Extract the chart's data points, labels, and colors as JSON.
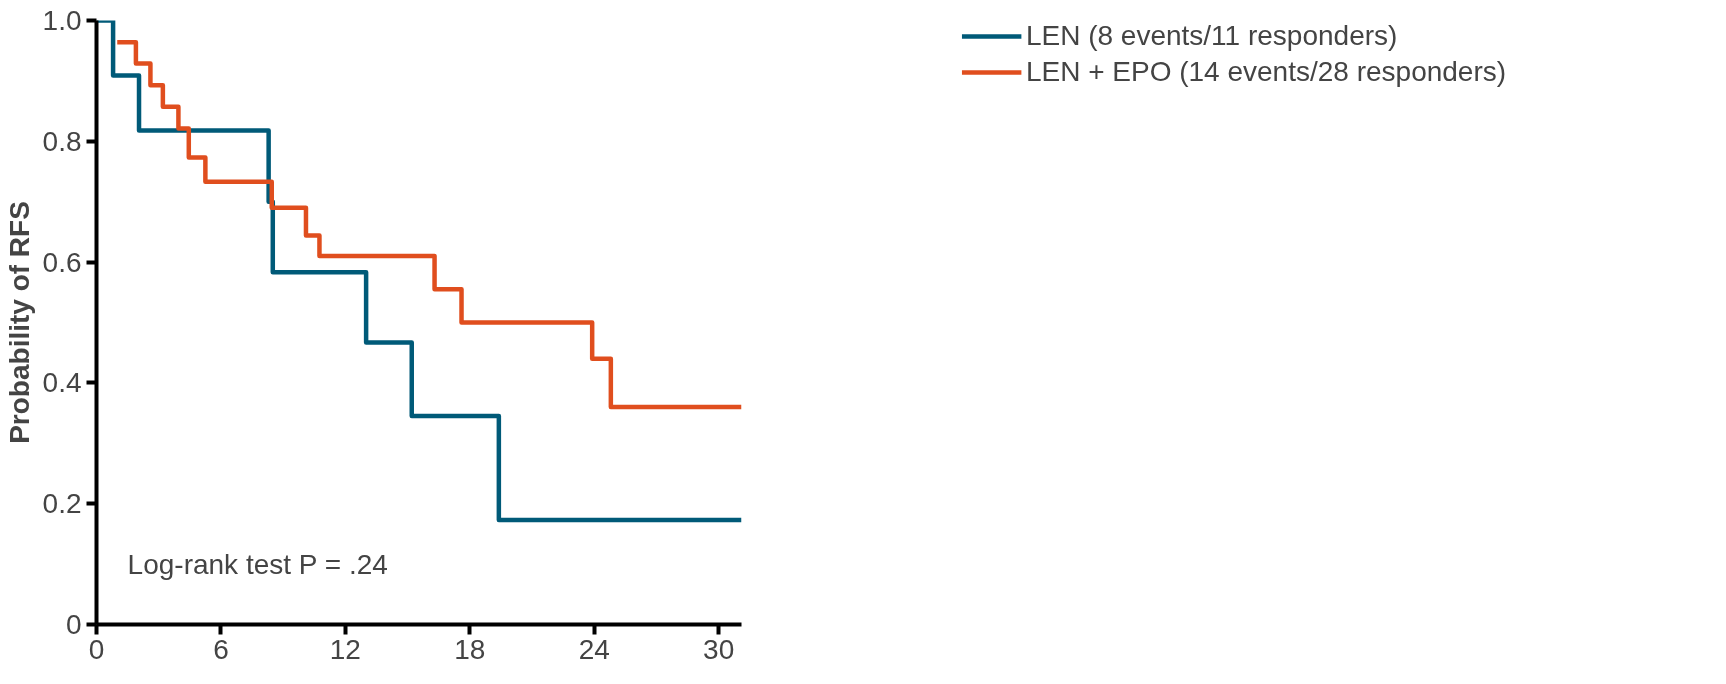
{
  "chart_data": {
    "type": "step",
    "ylabel": "Probability of RFS",
    "xlim": [
      0,
      31.1
    ],
    "ylim": [
      0,
      1
    ],
    "xticks": [
      0,
      6,
      12,
      18,
      24,
      30
    ],
    "yticks": [
      0,
      0.2,
      0.4,
      0.6,
      0.8,
      {
        "value": 1,
        "label": "1.0"
      }
    ],
    "grid": false,
    "legend": "top right",
    "line_style": "solid",
    "marker": "none",
    "annotations": [
      "Log-rank test P = .24"
    ],
    "series": [
      {
        "name": "LEN (8 events/11 responders)",
        "color": "#005a78",
        "x": [
          0,
          0.8,
          2.05,
          8.3,
          8.5,
          13.0,
          15.2,
          19.4,
          31.1
        ],
        "values": [
          1.0,
          0.909,
          0.818,
          0.7,
          0.583,
          0.467,
          0.345,
          0.173,
          0.173
        ]
      },
      {
        "name": "LEN + EPO (14 events/28 responders)",
        "color": "#e04e1e",
        "x": [
          1.0,
          1.9,
          2.6,
          3.2,
          3.95,
          4.45,
          5.25,
          8.45,
          10.1,
          10.75,
          16.3,
          17.6,
          23.9,
          24.8,
          31.1
        ],
        "values": [
          0.964,
          0.929,
          0.893,
          0.857,
          0.821,
          0.773,
          0.733,
          0.69,
          0.644,
          0.61,
          0.555,
          0.5,
          0.44,
          0.36,
          0.36
        ]
      }
    ]
  }
}
